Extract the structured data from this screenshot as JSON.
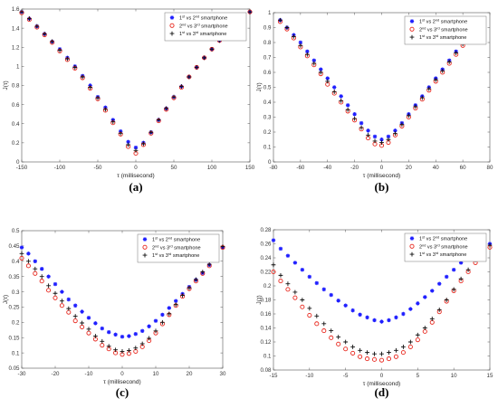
{
  "chart_data": [
    {
      "type": "scatter",
      "caption": "(a)",
      "xlabel": "τ (millisecond)",
      "ylabel": "J(τ)",
      "xlim": [
        -150,
        150
      ],
      "ylim": [
        0,
        1.6
      ],
      "xticks": [
        -150,
        -100,
        -50,
        0,
        50,
        100,
        150
      ],
      "yticks": [
        0,
        0.2,
        0.4,
        0.6,
        0.8,
        1,
        1.2,
        1.4,
        1.6
      ],
      "xtick_labels": [
        "-150",
        "-100",
        "-50",
        "0",
        "50",
        "100",
        "150"
      ],
      "ytick_labels": [
        "0",
        "0.2",
        "0.4",
        "0.6",
        "0.8",
        "1",
        "1.2",
        "1.4",
        "1.6"
      ],
      "legend_position": "top-right",
      "series": [
        {
          "name": "1st vs 2nd smartphone",
          "marker": "star",
          "color": "#1f1fff",
          "x": [
            -150,
            -140,
            -130,
            -120,
            -110,
            -100,
            -90,
            -80,
            -70,
            -60,
            -50,
            -40,
            -30,
            -20,
            -10,
            0,
            10,
            20,
            30,
            40,
            50,
            60,
            70,
            80,
            90,
            100,
            110,
            120,
            130,
            140,
            150
          ],
          "y": [
            1.57,
            1.5,
            1.42,
            1.34,
            1.26,
            1.18,
            1.09,
            1.0,
            0.9,
            0.8,
            0.68,
            0.57,
            0.44,
            0.32,
            0.21,
            0.15,
            0.2,
            0.31,
            0.44,
            0.56,
            0.68,
            0.79,
            0.89,
            0.99,
            1.09,
            1.18,
            1.27,
            1.35,
            1.43,
            1.5,
            1.57
          ]
        },
        {
          "name": "2nd vs 3rd smartphone",
          "marker": "circle",
          "color": "#e8261c",
          "x": [
            -150,
            -140,
            -130,
            -120,
            -110,
            -100,
            -90,
            -80,
            -70,
            -60,
            -50,
            -40,
            -30,
            -20,
            -10,
            0,
            10,
            20,
            30,
            40,
            50,
            60,
            70,
            80,
            90,
            100,
            110,
            120,
            130,
            140,
            150
          ],
          "y": [
            1.56,
            1.49,
            1.41,
            1.33,
            1.25,
            1.16,
            1.07,
            0.98,
            0.88,
            0.77,
            0.66,
            0.54,
            0.41,
            0.29,
            0.16,
            0.09,
            0.18,
            0.3,
            0.43,
            0.55,
            0.67,
            0.78,
            0.89,
            0.99,
            1.09,
            1.18,
            1.27,
            1.35,
            1.43,
            1.5,
            1.57
          ]
        },
        {
          "name": "1st vs 3rd smartphone",
          "marker": "plus",
          "color": "#111111",
          "x": [
            -150,
            -140,
            -130,
            -120,
            -110,
            -100,
            -90,
            -80,
            -70,
            -60,
            -50,
            -40,
            -30,
            -20,
            -10,
            0,
            10,
            20,
            30,
            40,
            50,
            60,
            70,
            80,
            90,
            100,
            110,
            120,
            130,
            140,
            150
          ],
          "y": [
            1.57,
            1.5,
            1.42,
            1.34,
            1.26,
            1.17,
            1.08,
            0.99,
            0.89,
            0.78,
            0.67,
            0.55,
            0.42,
            0.3,
            0.18,
            0.12,
            0.19,
            0.31,
            0.44,
            0.56,
            0.68,
            0.79,
            0.89,
            0.99,
            1.09,
            1.18,
            1.27,
            1.35,
            1.43,
            1.5,
            1.57
          ]
        }
      ]
    },
    {
      "type": "scatter",
      "caption": "(b)",
      "xlabel": "τ (millisecond)",
      "ylabel": "J(τ)",
      "xlim": [
        -80,
        80
      ],
      "ylim": [
        0,
        1
      ],
      "xticks": [
        -80,
        -60,
        -40,
        -20,
        0,
        20,
        40,
        60,
        80
      ],
      "yticks": [
        0,
        0.1,
        0.2,
        0.3,
        0.4,
        0.5,
        0.6,
        0.7,
        0.8,
        0.9,
        1
      ],
      "xtick_labels": [
        "-80",
        "-60",
        "-40",
        "-20",
        "0",
        "20",
        "40",
        "60",
        "80"
      ],
      "ytick_labels": [
        "0",
        "0.1",
        "0.2",
        "0.3",
        "0.4",
        "0.5",
        "0.6",
        "0.7",
        "0.8",
        "0.9",
        "1"
      ],
      "legend_position": "top-right",
      "series": [
        {
          "name": "1st vs 2nd smartphone",
          "marker": "star",
          "color": "#1f1fff",
          "x": [
            -75,
            -70,
            -65,
            -60,
            -55,
            -50,
            -45,
            -40,
            -35,
            -30,
            -25,
            -20,
            -15,
            -10,
            -5,
            0,
            5,
            10,
            15,
            20,
            25,
            30,
            35,
            40,
            45,
            50,
            55,
            60,
            65,
            70,
            75
          ],
          "y": [
            0.95,
            0.9,
            0.85,
            0.8,
            0.74,
            0.68,
            0.62,
            0.56,
            0.5,
            0.44,
            0.38,
            0.32,
            0.26,
            0.21,
            0.17,
            0.15,
            0.17,
            0.21,
            0.26,
            0.32,
            0.38,
            0.44,
            0.5,
            0.56,
            0.62,
            0.68,
            0.74,
            0.8,
            0.85,
            0.9,
            0.95
          ]
        },
        {
          "name": "2nd vs 3rd smartphone",
          "marker": "circle",
          "color": "#e8261c",
          "x": [
            -75,
            -70,
            -65,
            -60,
            -55,
            -50,
            -45,
            -40,
            -35,
            -30,
            -25,
            -20,
            -15,
            -10,
            -5,
            0,
            5,
            10,
            15,
            20,
            25,
            30,
            35,
            40,
            45,
            50,
            55,
            60,
            65,
            70,
            75
          ],
          "y": [
            0.94,
            0.89,
            0.83,
            0.77,
            0.71,
            0.65,
            0.59,
            0.52,
            0.46,
            0.4,
            0.34,
            0.28,
            0.22,
            0.16,
            0.12,
            0.11,
            0.13,
            0.18,
            0.24,
            0.3,
            0.36,
            0.42,
            0.48,
            0.54,
            0.6,
            0.66,
            0.72,
            0.78,
            0.84,
            0.89,
            0.94
          ]
        },
        {
          "name": "1st vs 3rd smartphone",
          "marker": "plus",
          "color": "#111111",
          "x": [
            -75,
            -70,
            -65,
            -60,
            -55,
            -50,
            -45,
            -40,
            -35,
            -30,
            -25,
            -20,
            -15,
            -10,
            -5,
            0,
            5,
            10,
            15,
            20,
            25,
            30,
            35,
            40,
            45,
            50,
            55,
            60,
            65,
            70,
            75
          ],
          "y": [
            0.95,
            0.9,
            0.84,
            0.78,
            0.72,
            0.66,
            0.6,
            0.54,
            0.47,
            0.41,
            0.35,
            0.29,
            0.23,
            0.18,
            0.14,
            0.13,
            0.15,
            0.19,
            0.25,
            0.31,
            0.37,
            0.43,
            0.49,
            0.55,
            0.61,
            0.67,
            0.73,
            0.79,
            0.84,
            0.9,
            0.95
          ]
        }
      ]
    },
    {
      "type": "scatter",
      "caption": "(c)",
      "xlabel": "τ (millisecond)",
      "ylabel": "J(τ)",
      "xlim": [
        -30,
        30
      ],
      "ylim": [
        0.05,
        0.5
      ],
      "xticks": [
        -30,
        -20,
        -10,
        0,
        10,
        20,
        30
      ],
      "yticks": [
        0.05,
        0.1,
        0.15,
        0.2,
        0.25,
        0.3,
        0.35,
        0.4,
        0.45,
        0.5
      ],
      "xtick_labels": [
        "-30",
        "-20",
        "-10",
        "0",
        "10",
        "20",
        "30"
      ],
      "ytick_labels": [
        "0.05",
        "0.1",
        "0.15",
        "0.2",
        "0.25",
        "0.3",
        "0.35",
        "0.4",
        "0.45",
        "0.5"
      ],
      "legend_position": "top-right",
      "series": [
        {
          "name": "1st vs 2nd smartphone",
          "marker": "star",
          "color": "#1f1fff",
          "x": [
            -30,
            -28,
            -26,
            -24,
            -22,
            -20,
            -18,
            -16,
            -14,
            -12,
            -10,
            -8,
            -6,
            -4,
            -2,
            0,
            2,
            4,
            6,
            8,
            10,
            12,
            14,
            16,
            18,
            20,
            22,
            24,
            26,
            28,
            30
          ],
          "y": [
            0.445,
            0.425,
            0.4,
            0.375,
            0.35,
            0.325,
            0.3,
            0.275,
            0.255,
            0.235,
            0.215,
            0.197,
            0.18,
            0.168,
            0.16,
            0.153,
            0.155,
            0.162,
            0.172,
            0.187,
            0.205,
            0.225,
            0.247,
            0.27,
            0.293,
            0.316,
            0.339,
            0.362,
            0.388,
            0.415,
            0.445
          ]
        },
        {
          "name": "2nd vs 3rd smartphone",
          "marker": "circle",
          "color": "#e8261c",
          "x": [
            -30,
            -28,
            -26,
            -24,
            -22,
            -20,
            -18,
            -16,
            -14,
            -12,
            -10,
            -8,
            -6,
            -4,
            -2,
            0,
            2,
            4,
            6,
            8,
            10,
            12,
            14,
            16,
            18,
            20,
            22,
            24,
            26,
            28,
            30
          ],
          "y": [
            0.41,
            0.385,
            0.36,
            0.335,
            0.305,
            0.28,
            0.255,
            0.233,
            0.205,
            0.185,
            0.165,
            0.145,
            0.125,
            0.113,
            0.1,
            0.095,
            0.098,
            0.105,
            0.12,
            0.14,
            0.165,
            0.195,
            0.225,
            0.255,
            0.285,
            0.31,
            0.335,
            0.36,
            0.385,
            0.41,
            0.445
          ]
        },
        {
          "name": "1st vs 3rd smartphone",
          "marker": "plus",
          "color": "#111111",
          "x": [
            -30,
            -28,
            -26,
            -24,
            -22,
            -20,
            -18,
            -16,
            -14,
            -12,
            -10,
            -8,
            -6,
            -4,
            -2,
            0,
            2,
            4,
            6,
            8,
            10,
            12,
            14,
            16,
            18,
            20,
            22,
            24,
            26,
            28,
            30
          ],
          "y": [
            0.425,
            0.4,
            0.375,
            0.35,
            0.32,
            0.295,
            0.27,
            0.245,
            0.22,
            0.198,
            0.178,
            0.155,
            0.138,
            0.122,
            0.11,
            0.105,
            0.108,
            0.116,
            0.13,
            0.148,
            0.172,
            0.2,
            0.228,
            0.258,
            0.288,
            0.313,
            0.34,
            0.365,
            0.39,
            0.418,
            0.448
          ]
        }
      ]
    },
    {
      "type": "scatter",
      "caption": "(d)",
      "xlabel": "τ (millisecond)",
      "ylabel": "J(τ)",
      "xlim": [
        -15,
        15
      ],
      "ylim": [
        0.08,
        0.28
      ],
      "xticks": [
        -15,
        -10,
        -5,
        0,
        5,
        10,
        15
      ],
      "yticks": [
        0.08,
        0.1,
        0.12,
        0.14,
        0.16,
        0.18,
        0.2,
        0.22,
        0.24,
        0.26,
        0.28
      ],
      "xtick_labels": [
        "-15",
        "-10",
        "-5",
        "0",
        "5",
        "10",
        "15"
      ],
      "ytick_labels": [
        "0.08",
        "0.1",
        "0.12",
        "0.14",
        "0.16",
        "0.18",
        "0.2",
        "0.22",
        "0.24",
        "0.26",
        "0.28"
      ],
      "legend_position": "top-right",
      "series": [
        {
          "name": "1st vs 2nd smartphone",
          "marker": "star",
          "color": "#1f1fff",
          "x": [
            -15,
            -14,
            -13,
            -12,
            -11,
            -10,
            -9,
            -8,
            -7,
            -6,
            -5,
            -4,
            -3,
            -2,
            -1,
            0,
            1,
            2,
            3,
            4,
            5,
            6,
            7,
            8,
            9,
            10,
            11,
            12,
            13,
            14,
            15
          ],
          "y": [
            0.265,
            0.253,
            0.243,
            0.233,
            0.223,
            0.213,
            0.204,
            0.195,
            0.187,
            0.179,
            0.172,
            0.165,
            0.159,
            0.155,
            0.151,
            0.149,
            0.151,
            0.155,
            0.16,
            0.167,
            0.175,
            0.184,
            0.193,
            0.203,
            0.213,
            0.223,
            0.233,
            0.243,
            0.253,
            0.258,
            0.26
          ]
        },
        {
          "name": "2nd vs 3rd smartphone",
          "marker": "circle",
          "color": "#e8261c",
          "x": [
            -15,
            -14,
            -13,
            -12,
            -11,
            -10,
            -9,
            -8,
            -7,
            -6,
            -5,
            -4,
            -3,
            -2,
            -1,
            0,
            1,
            2,
            3,
            4,
            5,
            6,
            7,
            8,
            9,
            10,
            11,
            12,
            13,
            14,
            15
          ],
          "y": [
            0.22,
            0.207,
            0.195,
            0.183,
            0.17,
            0.158,
            0.146,
            0.136,
            0.126,
            0.117,
            0.11,
            0.104,
            0.099,
            0.096,
            0.095,
            0.094,
            0.096,
            0.099,
            0.105,
            0.113,
            0.123,
            0.135,
            0.148,
            0.163,
            0.178,
            0.193,
            0.207,
            0.22,
            0.233,
            0.245,
            0.255
          ]
        },
        {
          "name": "1st vs 3rd smartphone",
          "marker": "plus",
          "color": "#111111",
          "x": [
            -15,
            -14,
            -13,
            -12,
            -11,
            -10,
            -9,
            -8,
            -7,
            -6,
            -5,
            -4,
            -3,
            -2,
            -1,
            0,
            1,
            2,
            3,
            4,
            5,
            6,
            7,
            8,
            9,
            10,
            11,
            12,
            13,
            14,
            15
          ],
          "y": [
            0.23,
            0.215,
            0.203,
            0.191,
            0.18,
            0.168,
            0.157,
            0.146,
            0.136,
            0.127,
            0.12,
            0.113,
            0.108,
            0.105,
            0.103,
            0.103,
            0.105,
            0.108,
            0.113,
            0.12,
            0.13,
            0.14,
            0.153,
            0.166,
            0.18,
            0.195,
            0.21,
            0.223,
            0.237,
            0.248,
            0.258
          ]
        }
      ]
    }
  ]
}
